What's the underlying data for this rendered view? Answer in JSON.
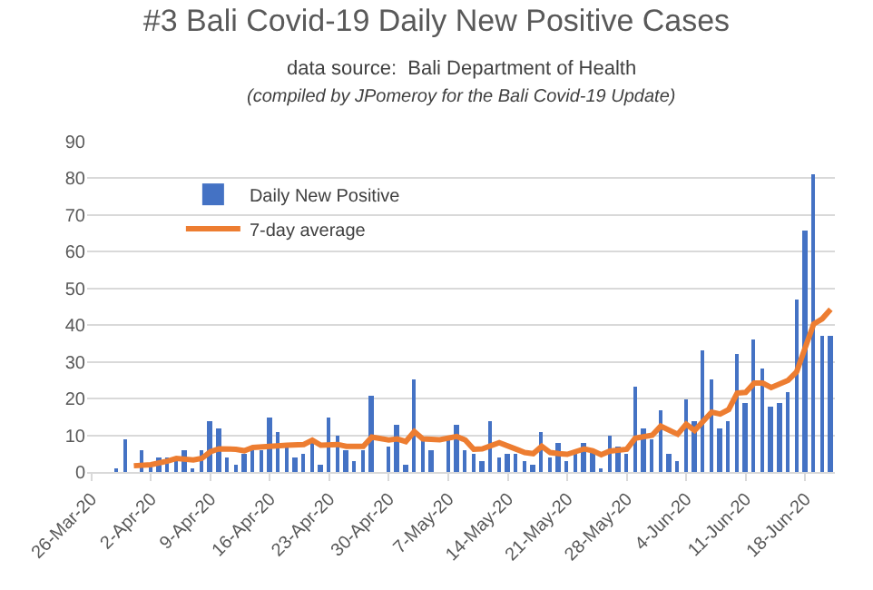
{
  "chart_data": {
    "type": "bar",
    "title": "#3 Bali Covid-19 Daily New Positive Cases",
    "subtitle": "data source:  Bali Department of Health",
    "annotations": [
      "(compiled by JPomeroy for the Bali Covid-19 Update)"
    ],
    "x": [
      "--03-29",
      "--03-30",
      "--03-31",
      "--04-01",
      "--04-02",
      "--04-03",
      "--04-04",
      "--04-05",
      "--04-06",
      "--04-07",
      "--04-08",
      "--04-09",
      "--04-10",
      "--04-11",
      "--04-12",
      "--04-13",
      "--04-14",
      "--04-15",
      "--04-16",
      "--04-17",
      "--04-18",
      "--04-19",
      "--04-20",
      "--04-21",
      "--04-22",
      "--04-23",
      "--04-24",
      "--04-25",
      "--04-26",
      "--04-27",
      "--04-28",
      "--04-29",
      "--04-30",
      "--05-01",
      "--05-02",
      "--05-03",
      "--05-04",
      "--05-05",
      "--05-06",
      "--05-07",
      "--05-08",
      "--05-09",
      "--05-10",
      "--05-11",
      "--05-12",
      "--05-13",
      "--05-14",
      "--05-15",
      "--05-16",
      "--05-17",
      "--05-18",
      "--05-19",
      "--05-20",
      "--05-21",
      "--05-22",
      "--05-23",
      "--05-24",
      "--05-25",
      "--05-26",
      "--05-27",
      "--05-28",
      "--05-29",
      "--05-30",
      "--05-31",
      "--06-01",
      "--06-02",
      "--06-03",
      "--06-04",
      "--06-05",
      "--06-06",
      "--06-07",
      "--06-08",
      "--06-09",
      "--06-10",
      "--06-11",
      "--06-12",
      "--06-13",
      "--06-14",
      "--06-15",
      "--06-16",
      "--06-17",
      "--06-18",
      "--06-19",
      "--06-20",
      "--06-21"
    ],
    "series": [
      {
        "name": "Daily New Positive",
        "color": "#4472c4",
        "values": [
          1,
          9,
          0,
          6,
          2,
          4,
          4,
          3,
          6,
          1,
          6,
          14,
          12,
          4,
          2,
          5,
          6,
          6,
          15,
          11,
          7,
          4,
          5,
          9,
          2,
          15,
          10,
          6,
          3,
          6,
          21,
          0,
          7,
          13,
          2,
          25,
          9,
          6,
          0,
          9,
          13,
          6,
          5,
          3,
          14,
          4,
          5,
          5,
          3,
          2,
          11,
          4,
          8,
          3,
          5,
          8,
          6,
          1,
          10,
          7,
          5,
          23,
          12,
          9,
          17,
          5,
          3,
          20,
          14,
          33,
          25,
          12,
          14,
          32,
          19,
          36,
          28,
          18,
          19,
          22,
          47,
          66,
          81,
          37,
          37
        ]
      },
      {
        "name": "7-day average",
        "type": "line",
        "color": "#ed7d31",
        "x": [
          "--03-31",
          "--04-02",
          "--04-04",
          "--04-05",
          "--04-07",
          "--04-08",
          "--04-09",
          "--04-10",
          "--04-12",
          "--04-13",
          "--04-14",
          "--04-16",
          "--04-18",
          "--04-20",
          "--04-21",
          "--04-22",
          "--04-24",
          "--04-25",
          "--04-27",
          "--04-28",
          "--04-30",
          "--05-01",
          "--05-02",
          "--05-03",
          "--05-04",
          "--05-06",
          "--05-08",
          "--05-09",
          "--05-10",
          "--05-11",
          "--05-13",
          "--05-15",
          "--05-16",
          "--05-17",
          "--05-18",
          "--05-19",
          "--05-20",
          "--05-21",
          "--05-23",
          "--05-24",
          "--05-25",
          "--05-26",
          "--05-28",
          "--05-29",
          "--05-31",
          "--06-01",
          "--06-03",
          "--06-04",
          "--06-05",
          "--06-07",
          "--06-08",
          "--06-09",
          "--06-10",
          "--06-11",
          "--06-12",
          "--06-13",
          "--06-14",
          "--06-16",
          "--06-17",
          "--06-18",
          "--06-19",
          "--06-20",
          "--06-21"
        ],
        "values": [
          1.7,
          2,
          3,
          3.7,
          3.3,
          3.7,
          5.5,
          6.3,
          6.2,
          5.8,
          6.7,
          7,
          7.3,
          7.5,
          8.7,
          7.3,
          7.5,
          7,
          7,
          9.5,
          8.7,
          9,
          8.3,
          11,
          9,
          8.8,
          9.7,
          8.7,
          6.2,
          6.3,
          8,
          6.2,
          5.3,
          5,
          7,
          5.3,
          5,
          4.8,
          6.3,
          5.8,
          4.7,
          5.7,
          6.2,
          9.2,
          10,
          12.5,
          10.3,
          13,
          11.3,
          16.3,
          15.8,
          17,
          21.5,
          21.7,
          24.2,
          24.2,
          23,
          25,
          27.3,
          33.8,
          40.3,
          41.7,
          44.3
        ]
      }
    ],
    "xlim": [
      "--03-25T12:00",
      "--06-21T12:00"
    ],
    "xticks": [
      {
        "value": "--03-26",
        "label": "26-Mar-20"
      },
      {
        "value": "--04-02",
        "label": "2-Apr-20"
      },
      {
        "value": "--04-09",
        "label": "9-Apr-20"
      },
      {
        "value": "--04-16",
        "label": "16-Apr-20"
      },
      {
        "value": "--04-23",
        "label": "23-Apr-20"
      },
      {
        "value": "--04-30",
        "label": "30-Apr-20"
      },
      {
        "value": "--05-07",
        "label": "7-May-20"
      },
      {
        "value": "--05-14",
        "label": "14-May-20"
      },
      {
        "value": "--05-21",
        "label": "21-May-20"
      },
      {
        "value": "--05-28",
        "label": "28-May-20"
      },
      {
        "value": "--06-04",
        "label": "4-Jun-20"
      },
      {
        "value": "--06-11",
        "label": "11-Jun-20"
      },
      {
        "value": "--06-18",
        "label": "18-Jun-20"
      }
    ],
    "ylim": [
      0,
      90
    ],
    "yticks": [
      0,
      10,
      20,
      30,
      40,
      50,
      60,
      70,
      80,
      90
    ],
    "grid": "y",
    "legend": "top left"
  }
}
